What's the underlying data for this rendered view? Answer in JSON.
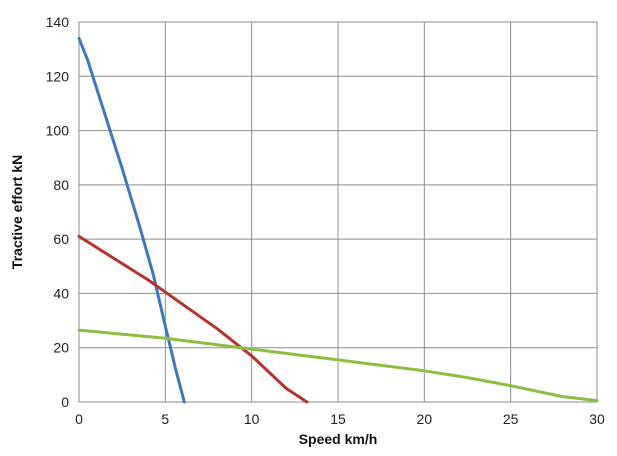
{
  "chart_data": {
    "type": "line",
    "title": "",
    "xlabel": "Speed km/h",
    "ylabel": "Tractive effort kN",
    "xlim": [
      0,
      30
    ],
    "ylim": [
      0,
      140
    ],
    "xticks": [
      0,
      5,
      10,
      15,
      20,
      25,
      30
    ],
    "yticks": [
      0,
      20,
      40,
      60,
      80,
      100,
      120,
      140
    ],
    "grid": true,
    "legend": "none",
    "series": [
      {
        "color": "#3a78c2",
        "points": [
          [
            0,
            134
          ],
          [
            0.5,
            126
          ],
          [
            1.5,
            106
          ],
          [
            2.5,
            86
          ],
          [
            3.5,
            65
          ],
          [
            4.3,
            47
          ],
          [
            5.0,
            28
          ],
          [
            5.6,
            12
          ],
          [
            6.1,
            0
          ]
        ]
      },
      {
        "color": "#b8312d",
        "points": [
          [
            0,
            61
          ],
          [
            2,
            53
          ],
          [
            4,
            45
          ],
          [
            6,
            36
          ],
          [
            8,
            27
          ],
          [
            10,
            17
          ],
          [
            11,
            11
          ],
          [
            12,
            5
          ],
          [
            13.2,
            0
          ]
        ]
      },
      {
        "color": "#8cbf3f",
        "points": [
          [
            0,
            26.5
          ],
          [
            5,
            23.5
          ],
          [
            10,
            19.5
          ],
          [
            15,
            15.5
          ],
          [
            20,
            11.5
          ],
          [
            22.5,
            9
          ],
          [
            25,
            6
          ],
          [
            28,
            2
          ],
          [
            30,
            0.5
          ]
        ]
      }
    ]
  }
}
